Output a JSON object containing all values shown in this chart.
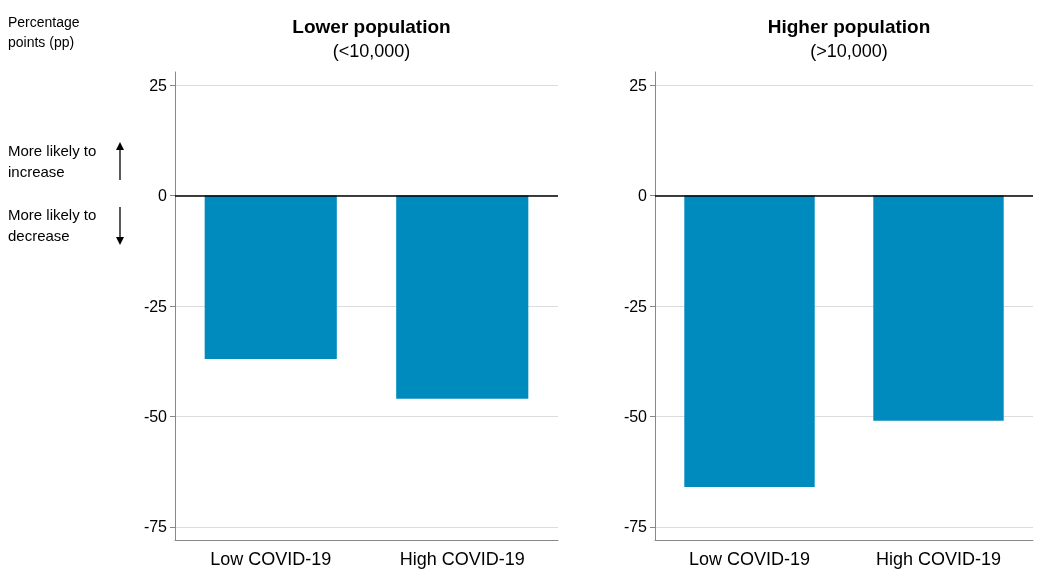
{
  "chart_data": [
    {
      "type": "bar",
      "title": "Lower population",
      "subtitle": "(<10,000)",
      "ylabel": "Percentage points (pp)",
      "categories": [
        "Low COVID-19",
        "High COVID-19"
      ],
      "values": [
        -37,
        -46
      ],
      "color": "#008bbf",
      "ylim": [
        -78,
        28
      ],
      "yticks": [
        -75,
        -50,
        -25,
        0,
        25
      ],
      "grid": "y",
      "ref_lines": [
        {
          "axis": "y",
          "value": 0,
          "color": "#000000"
        }
      ],
      "annotations": [
        "More likely to increase",
        "More likely to decrease"
      ]
    },
    {
      "type": "bar",
      "title": "Higher population",
      "subtitle": "(>10,000)",
      "categories": [
        "Low COVID-19",
        "High COVID-19"
      ],
      "values": [
        -66,
        -51
      ],
      "color": "#008bbf",
      "ylim": [
        -78,
        28
      ],
      "yticks": [
        -75,
        -50,
        -25,
        0,
        25
      ],
      "grid": "y",
      "ref_lines": [
        {
          "axis": "y",
          "value": 0,
          "color": "#000000"
        }
      ]
    }
  ]
}
